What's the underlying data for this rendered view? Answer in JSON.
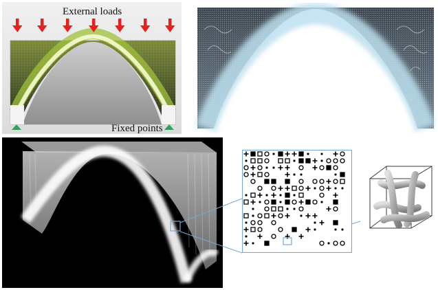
{
  "figure": {
    "labels": {
      "external_loads": "External loads",
      "fixed_points": "Fixed points"
    },
    "colors": {
      "load_arrow": "#e8201c",
      "fixed_point": "#2fa35a",
      "structure_green": "#9fc23c",
      "arch_highlight": "#f6fbcf",
      "render_blue": "#bcdfef",
      "volume_bg": "#000000",
      "zoom_frame": "#7aa7cf"
    },
    "icons": [
      "arrow-down-icon",
      "triangle-support-icon"
    ]
  }
}
